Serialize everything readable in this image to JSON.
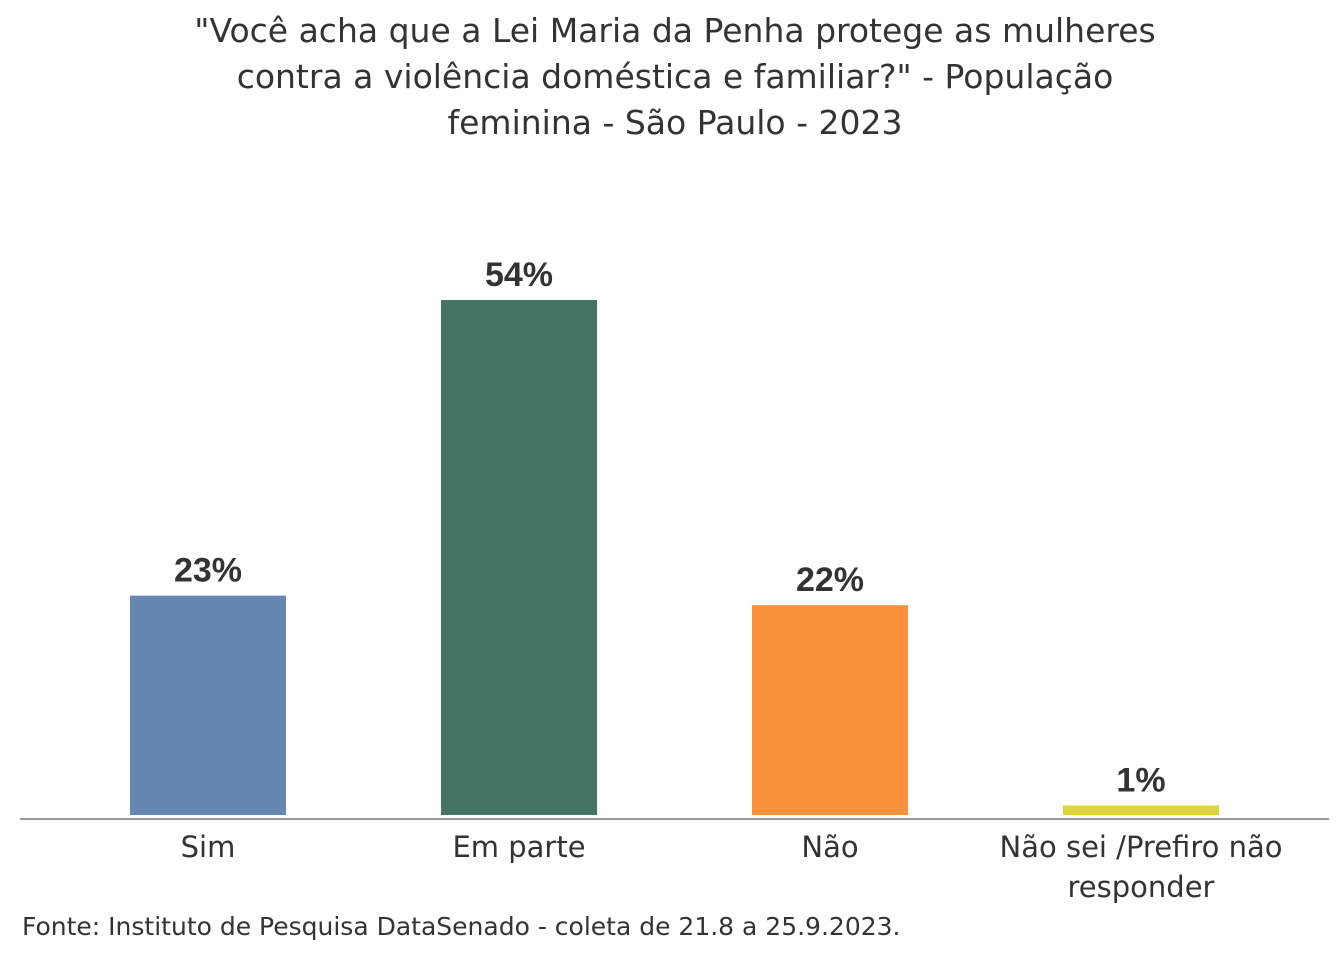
{
  "chart_data": {
    "type": "bar",
    "title_lines": [
      "\"Você acha que a Lei Maria da Penha protege as mulheres",
      "contra a violência doméstica e familiar?\" - População",
      "feminina - São Paulo - 2023"
    ],
    "categories": [
      [
        "Sim"
      ],
      [
        "Em parte"
      ],
      [
        "Não"
      ],
      [
        "Não sei /Prefiro não",
        "responder"
      ]
    ],
    "values": [
      23,
      54,
      22,
      1
    ],
    "value_labels": [
      "23%",
      "54%",
      "22%",
      "1%"
    ],
    "colors": [
      "#6688b0",
      "#457562",
      "#f9913d",
      "#ded53a"
    ],
    "ylim": [
      0,
      54
    ],
    "grid": false,
    "legend": "none"
  },
  "source": "Fonte: Instituto de Pesquisa DataSenado - coleta de 21.8 a 25.9.2023."
}
